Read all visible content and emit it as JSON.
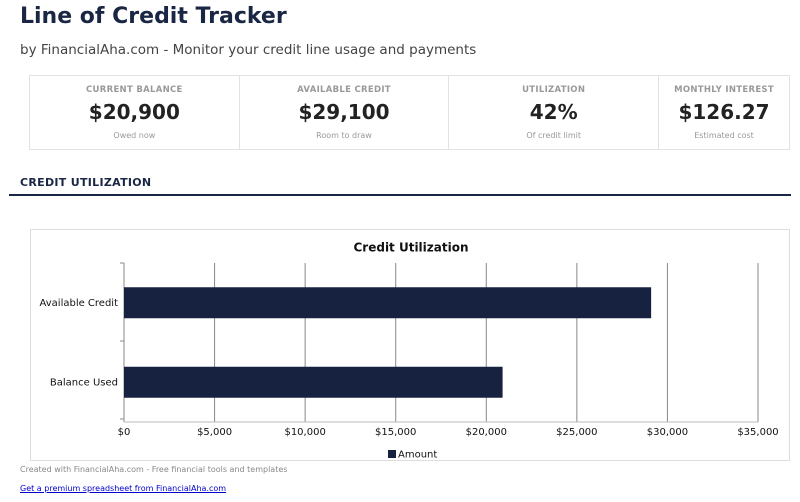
{
  "header": {
    "title": "Line of Credit Tracker",
    "subtitle": "by FinancialAha.com - Monitor your credit line usage and payments"
  },
  "cards": [
    {
      "label": "CURRENT BALANCE",
      "value": "$20,900",
      "note": "Owed now"
    },
    {
      "label": "AVAILABLE CREDIT",
      "value": "$29,100",
      "note": "Room to draw"
    },
    {
      "label": "UTILIZATION",
      "value": "42%",
      "note": "Of credit limit"
    },
    {
      "label": "MONTHLY INTEREST",
      "value": "$126.27",
      "note": "Estimated cost"
    }
  ],
  "section_title": "CREDIT UTILIZATION",
  "chart_data": {
    "type": "bar",
    "orientation": "horizontal",
    "title": "Credit Utilization",
    "categories": [
      "Available Credit",
      "Balance Used"
    ],
    "series": [
      {
        "name": "Amount",
        "color": "#172241",
        "values": [
          29100,
          20900
        ]
      }
    ],
    "xlim": [
      0,
      35000
    ],
    "xticks": [
      {
        "value": 0,
        "label": "$0"
      },
      {
        "value": 5000,
        "label": "$5,000"
      },
      {
        "value": 10000,
        "label": "$10,000"
      },
      {
        "value": 15000,
        "label": "$15,000"
      },
      {
        "value": 20000,
        "label": "$20,000"
      },
      {
        "value": 25000,
        "label": "$25,000"
      },
      {
        "value": 30000,
        "label": "$30,000"
      },
      {
        "value": 35000,
        "label": "$35,000"
      }
    ],
    "grid": true
  },
  "footer": {
    "note": "Created with FinancialAha.com - Free financial tools and templates",
    "link": "Get a premium spreadsheet from FinancialAha.com"
  }
}
